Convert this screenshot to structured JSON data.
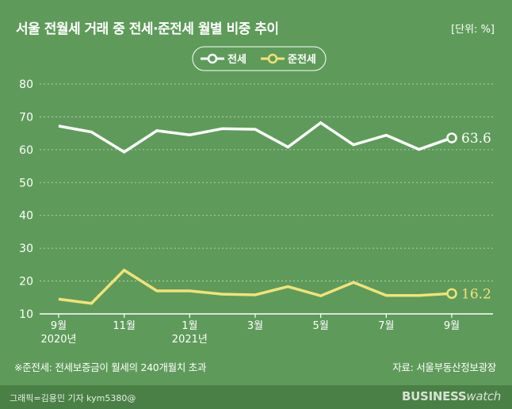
{
  "title": "서울 전월세 거래 중 전세·준전세 월별 비중 추이",
  "unit_label": "[단위: %]",
  "footnote": "※준전세: 전세보증금이 월세의 240개월치 초과",
  "source": "자료: 서울부동산정보광장",
  "credit": "그래픽=김용민 기자 kym5380@",
  "brand": {
    "part1": "BUSINESS",
    "part2": "watch"
  },
  "colors": {
    "background": "#5e9b5a",
    "jeonse": "#ffffff",
    "jun_jeonse": "#f2e27a",
    "grid": "#c8d8c4"
  },
  "chart_data": {
    "type": "line",
    "x": [
      "2020-09",
      "2020-10",
      "2020-11",
      "2020-12",
      "2021-01",
      "2021-02",
      "2021-03",
      "2021-04",
      "2021-05",
      "2021-06",
      "2021-07",
      "2021-08",
      "2021-09"
    ],
    "x_tick_labels": [
      {
        "index": 0,
        "label": "9월",
        "sub": "2020년"
      },
      {
        "index": 2,
        "label": "11월",
        "sub": ""
      },
      {
        "index": 4,
        "label": "1월",
        "sub": "2021년"
      },
      {
        "index": 6,
        "label": "3월",
        "sub": ""
      },
      {
        "index": 8,
        "label": "5월",
        "sub": ""
      },
      {
        "index": 10,
        "label": "7월",
        "sub": ""
      },
      {
        "index": 12,
        "label": "9월",
        "sub": ""
      }
    ],
    "y_ticks": [
      "10",
      "20",
      "30",
      "40",
      "50",
      "60",
      "70",
      "80"
    ],
    "ylim": [
      10,
      80
    ],
    "grid": "horizontal dashed",
    "legend_position": "top-center",
    "series": [
      {
        "name": "전세",
        "color": "#ffffff",
        "values": [
          67.2,
          65.4,
          59.3,
          65.8,
          64.5,
          66.4,
          66.2,
          60.8,
          68.2,
          61.5,
          64.4,
          60.1,
          63.6
        ],
        "end_label": "63.6"
      },
      {
        "name": "준전세",
        "color": "#f2e27a",
        "values": [
          14.5,
          13.2,
          23.3,
          17.0,
          17.0,
          16.0,
          15.8,
          18.3,
          15.5,
          19.6,
          15.6,
          15.6,
          16.2
        ],
        "end_label": "16.2"
      }
    ]
  }
}
